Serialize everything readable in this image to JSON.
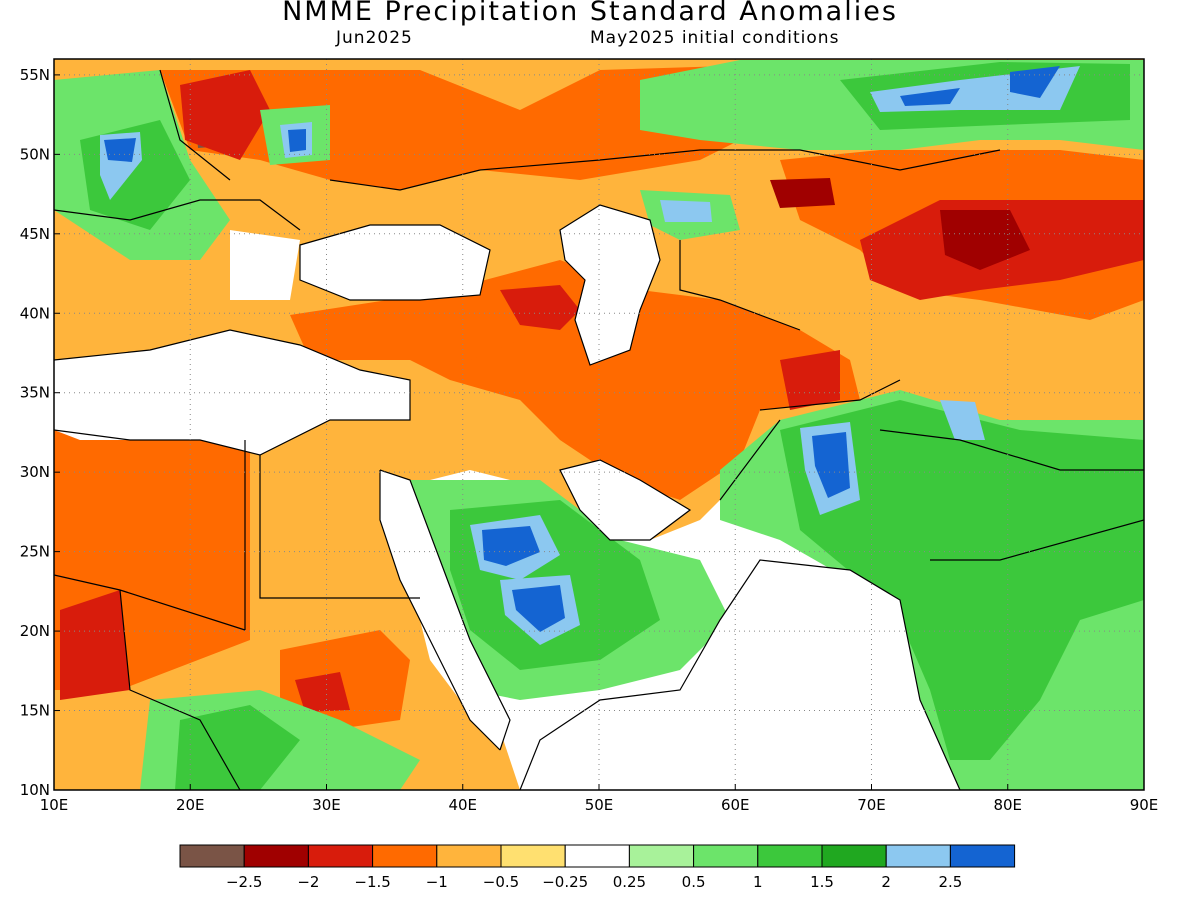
{
  "title": "NMME Precipitation Standard Anomalies",
  "subtitle_left": "Jun2025",
  "subtitle_right": "May2025 initial conditions",
  "map": {
    "lon_range": [
      10,
      90
    ],
    "lat_range": [
      10,
      56
    ],
    "lon_ticks": [
      "10E",
      "20E",
      "30E",
      "40E",
      "50E",
      "60E",
      "70E",
      "80E",
      "90E"
    ],
    "lon_values": [
      10,
      20,
      30,
      40,
      50,
      60,
      70,
      80,
      90
    ],
    "lat_ticks": [
      "10N",
      "15N",
      "20N",
      "25N",
      "30N",
      "35N",
      "40N",
      "45N",
      "50N",
      "55N"
    ],
    "lat_values": [
      10,
      15,
      20,
      25,
      30,
      35,
      40,
      45,
      50,
      55
    ],
    "grid": "dotted",
    "land_outline_color": "#000000",
    "ocean_color": "#ffffff"
  },
  "legend": {
    "labels": [
      "-2.5",
      "-2",
      "-1.5",
      "-1",
      "-0.5",
      "-0.25",
      "0.25",
      "0.5",
      "1",
      "1.5",
      "2",
      "2.5"
    ],
    "colors": [
      "#7a5446",
      "#a00000",
      "#d81c0c",
      "#ff6a00",
      "#ffb43c",
      "#ffe070",
      "#ffffff",
      "#a8f29a",
      "#6ce46a",
      "#3cc83c",
      "#20a820",
      "#8cc8f0",
      "#1464d2"
    ]
  },
  "anomaly_regions": [
    {
      "category": "-1",
      "lon": [
        10,
        60
      ],
      "lat": [
        10,
        56
      ]
    },
    {
      "category": "-1.5",
      "lon": [
        10,
        25
      ],
      "lat": [
        17,
        32
      ]
    },
    {
      "category": "1",
      "lon": [
        41,
        54
      ],
      "lat": [
        16,
        28
      ]
    },
    {
      "category": "1.5",
      "lon": [
        62,
        85
      ],
      "lat": [
        11,
        33
      ]
    },
    {
      "category": "-1.5",
      "lon": [
        75,
        90
      ],
      "lat": [
        42,
        49
      ]
    },
    {
      "category": "1",
      "lon": [
        62,
        90
      ],
      "lat": [
        48,
        56
      ]
    }
  ]
}
